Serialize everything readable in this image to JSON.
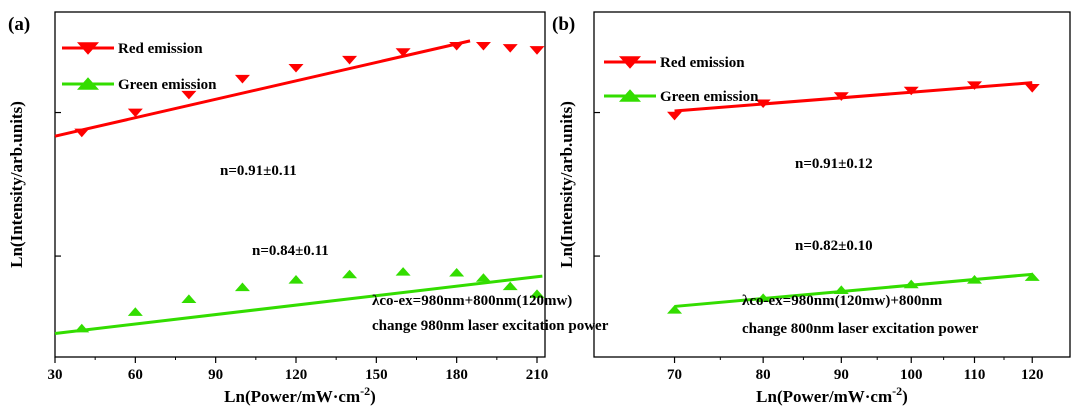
{
  "chart_data": [
    {
      "panel_label": "(a)",
      "type": "scatter",
      "xlabel": "Ln(Power/mW·cm⁻²)",
      "ylabel": "Ln(Intensity/arb.units)",
      "x_scale": "log",
      "y_scale": "log",
      "xlim": [
        30,
        212
      ],
      "x_ticks": [
        30,
        60,
        90,
        120,
        150,
        180,
        210
      ],
      "legend": {
        "position": "top-left",
        "entries": [
          "Red emission",
          "Green emission"
        ]
      },
      "series": [
        {
          "name": "Red emission",
          "marker": "triangle-down",
          "color": "#ff0000",
          "x": [
            40,
            60,
            80,
            100,
            120,
            140,
            160,
            180,
            190,
            200,
            210
          ],
          "y": [
            0.44,
            0.5,
            0.56,
            0.62,
            0.665,
            0.7,
            0.735,
            0.765,
            0.765,
            0.755,
            0.745
          ],
          "fit_line": {
            "x": [
              30,
              185
            ],
            "y": [
              0.43,
              0.79
            ]
          },
          "annotation": "n=0.91±0.11"
        },
        {
          "name": "Green emission",
          "marker": "triangle-up",
          "color": "#33dd00",
          "x": [
            40,
            60,
            80,
            100,
            120,
            140,
            160,
            180,
            190,
            200,
            210
          ],
          "y": [
            0.126,
            0.14,
            0.152,
            0.164,
            0.172,
            0.178,
            0.181,
            0.18,
            0.174,
            0.165,
            0.157
          ],
          "fit_line": {
            "x": [
              30,
              212
            ],
            "y": [
              0.122,
              0.176
            ]
          },
          "annotation": "n=0.84±0.11"
        }
      ],
      "notes": [
        "λco-ex=980nm+800nm(120mw)",
        "change 980nm laser excitation power"
      ]
    },
    {
      "panel_label": "(b)",
      "type": "scatter",
      "xlabel": "Ln(Power/mW·cm⁻²)",
      "ylabel": "Ln(Intensity/arb.units)",
      "x_scale": "log",
      "y_scale": "log",
      "xlim": [
        62,
        124
      ],
      "x_ticks": [
        70,
        80,
        90,
        100,
        110,
        120
      ],
      "legend": {
        "position": "top-left",
        "entries": [
          "Red emission",
          "Green emission"
        ]
      },
      "series": [
        {
          "name": "Red emission",
          "marker": "triangle-down",
          "color": "#ff0000",
          "x": [
            70,
            80,
            90,
            100,
            110,
            120
          ],
          "y": [
            0.49,
            0.53,
            0.555,
            0.575,
            0.595,
            0.585
          ],
          "fit_line": {
            "x": [
              70,
              120
            ],
            "y": [
              0.505,
              0.605
            ]
          },
          "annotation": "n=0.91±0.12"
        },
        {
          "name": "Green emission",
          "marker": "triangle-up",
          "color": "#33dd00",
          "x": [
            70,
            80,
            90,
            100,
            110,
            120
          ],
          "y": [
            0.142,
            0.153,
            0.161,
            0.167,
            0.172,
            0.175
          ],
          "fit_line": {
            "x": [
              70,
              120
            ],
            "y": [
              0.145,
              0.178
            ]
          },
          "annotation": "n=0.82±0.10"
        }
      ],
      "notes": [
        "λco-ex=980nm(120mw)+800nm",
        "change 800nm laser excitation power"
      ]
    }
  ]
}
